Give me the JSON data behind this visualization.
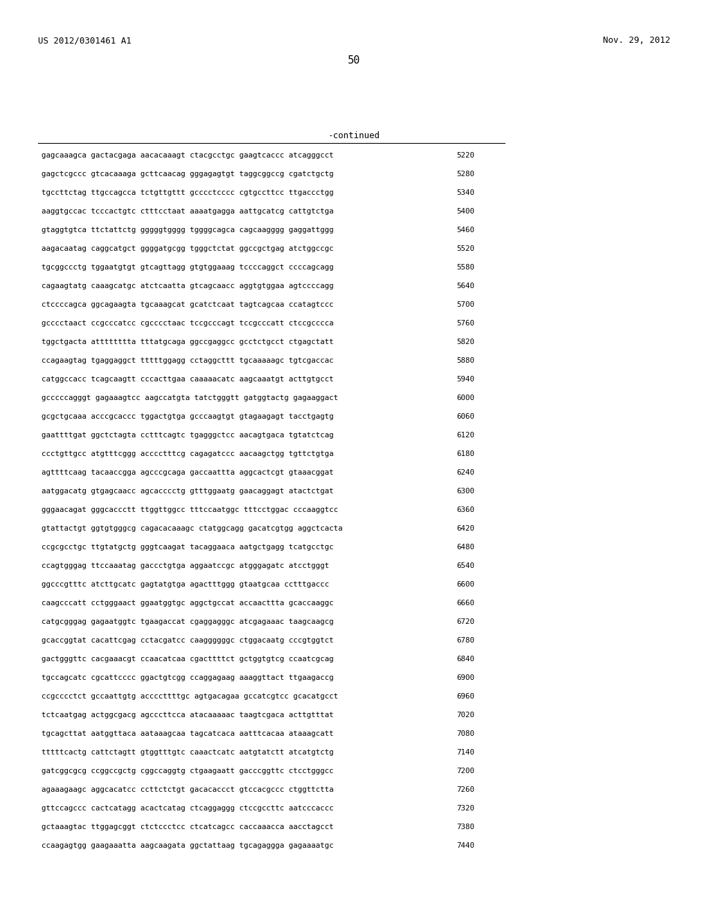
{
  "header_left": "US 2012/0301461 A1",
  "header_right": "Nov. 29, 2012",
  "page_number": "50",
  "continued_label": "-continued",
  "background_color": "#ffffff",
  "text_color": "#000000",
  "sequences": [
    [
      "gagcaaagca gactacgaga aacacaaagt ctacgcctgc gaagtcaccc atcagggcct",
      "5220"
    ],
    [
      "gagctcgccc gtcacaaaga gcttcaacag gggagagtgt taggcggccg cgatctgctg",
      "5280"
    ],
    [
      "tgccttctag ttgccagcca tctgttgttt gcccctcccc cgtgccttcc ttgaccctgg",
      "5340"
    ],
    [
      "aaggtgccac tcccactgtc ctttcctaat aaaatgagga aattgcatcg cattgtctga",
      "5400"
    ],
    [
      "gtaggtgtca ttctattctg gggggtgggg tggggcagca cagcaagggg gaggattggg",
      "5460"
    ],
    [
      "aagacaatag caggcatgct ggggatgcgg tgggctctat ggccgctgag atctggccgc",
      "5520"
    ],
    [
      "tgcggccctg tggaatgtgt gtcagttagg gtgtggaaag tccccaggct ccccagcagg",
      "5580"
    ],
    [
      "cagaagtatg caaagcatgc atctcaatta gtcagcaacc aggtgtggaa agtccccagg",
      "5640"
    ],
    [
      "ctccccagca ggcagaagta tgcaaagcat gcatctcaat tagtcagcaa ccatagtccc",
      "5700"
    ],
    [
      "gcccctaact ccgcccatcc cgcccctaac tccgcccagt tccgcccatt ctccgcccca",
      "5760"
    ],
    [
      "tggctgacta atttttttta tttatgcaga ggccgaggcc gcctctgcct ctgagctatt",
      "5820"
    ],
    [
      "ccagaagtag tgaggaggct tttttggagg cctaggcttt tgcaaaaagc tgtcgaccac",
      "5880"
    ],
    [
      "catggccacc tcagcaagtt cccacttgaa caaaaacatc aagcaaatgt acttgtgcct",
      "5940"
    ],
    [
      "gcccccagggt gagaaagtcc aagccatgta tatctgggtt gatggtactg gagaaggact",
      "6000"
    ],
    [
      "gcgctgcaaa acccgcaccc tggactgtga gcccaagtgt gtagaagagt tacctgagtg",
      "6060"
    ],
    [
      "gaattttgat ggctctagta cctttcagtc tgagggctcc aacagtgaca tgtatctcag",
      "6120"
    ],
    [
      "ccctgttgcc atgtttcggg acccctttcg cagagatccc aacaagctgg tgttctgtga",
      "6180"
    ],
    [
      "agttttcaag tacaaccgga agcccgcaga gaccaattta aggcactcgt gtaaacggat",
      "6240"
    ],
    [
      "aatggacatg gtgagcaacc agcacccctg gtttggaatg gaacaggagt atactctgat",
      "6300"
    ],
    [
      "gggaacagat gggcaccctt ttggttggcc tttccaatggc tttcctggac cccaaggtcc",
      "6360"
    ],
    [
      "gtattactgt ggtgtgggcg cagacacaaagc ctatggcagg gacatcgtgg aggctcacta",
      "6420"
    ],
    [
      "ccgcgcctgc ttgtatgctg gggtcaagat tacaggaaca aatgctgagg tcatgcctgc",
      "6480"
    ],
    [
      "ccagtgggag ttccaaatag gaccctgtga aggaatccgc atgggagatc atcctgggt",
      "6540"
    ],
    [
      "ggcccgtttc atcttgcatc gagtatgtga agactttggg gtaatgcaa cctttgaccc",
      "6600"
    ],
    [
      "caagcccatt cctgggaact ggaatggtgc aggctgccat accaacttta gcaccaaggc",
      "6660"
    ],
    [
      "catgcgggag gagaatggtc tgaagaccat cgaggagggc atcgagaaac taagcaagcg",
      "6720"
    ],
    [
      "gcaccggtat cacattcgag cctacgatcc caaggggggc ctggacaatg cccgtggtct",
      "6780"
    ],
    [
      "gactgggttc cacgaaacgt ccaacatcaa cgacttttct gctggtgtcg ccaatcgcag",
      "6840"
    ],
    [
      "tgccagcatc cgcattcccc ggactgtcgg ccaggagaag aaaggttact ttgaagaccg",
      "6900"
    ],
    [
      "ccgcccctct gccaattgtg accccttttgc agtgacagaa gccatcgtcc gcacatgcct",
      "6960"
    ],
    [
      "tctcaatgag actggcgacg agcccttcca atacaaaaac taagtcgaca acttgtttat",
      "7020"
    ],
    [
      "tgcagcttat aatggttaca aataaagcaa tagcatcaca aatttcacaa ataaagcatt",
      "7080"
    ],
    [
      "tttttcactg cattctagtt gtggtttgtc caaactcatc aatgtatctt atcatgtctg",
      "7140"
    ],
    [
      "gatcggcgcg ccggccgctg cggccaggtg ctgaagaatt gacccggttc ctcctgggcc",
      "7200"
    ],
    [
      "agaaagaagc aggcacatcc ccttctctgt gacacaccct gtccacgccc ctggttctta",
      "7260"
    ],
    [
      "gttccagccc cactcatagg acactcatag ctcaggaggg ctccgccttc aatcccaccc",
      "7320"
    ],
    [
      "gctaaagtac ttggagcggt ctctccctcc ctcatcagcc caccaaacca aacctagcct",
      "7380"
    ],
    [
      "ccaagagtgg gaagaaatta aagcaagata ggctattaag tgcagaggga gagaaaatgc",
      "7440"
    ]
  ]
}
